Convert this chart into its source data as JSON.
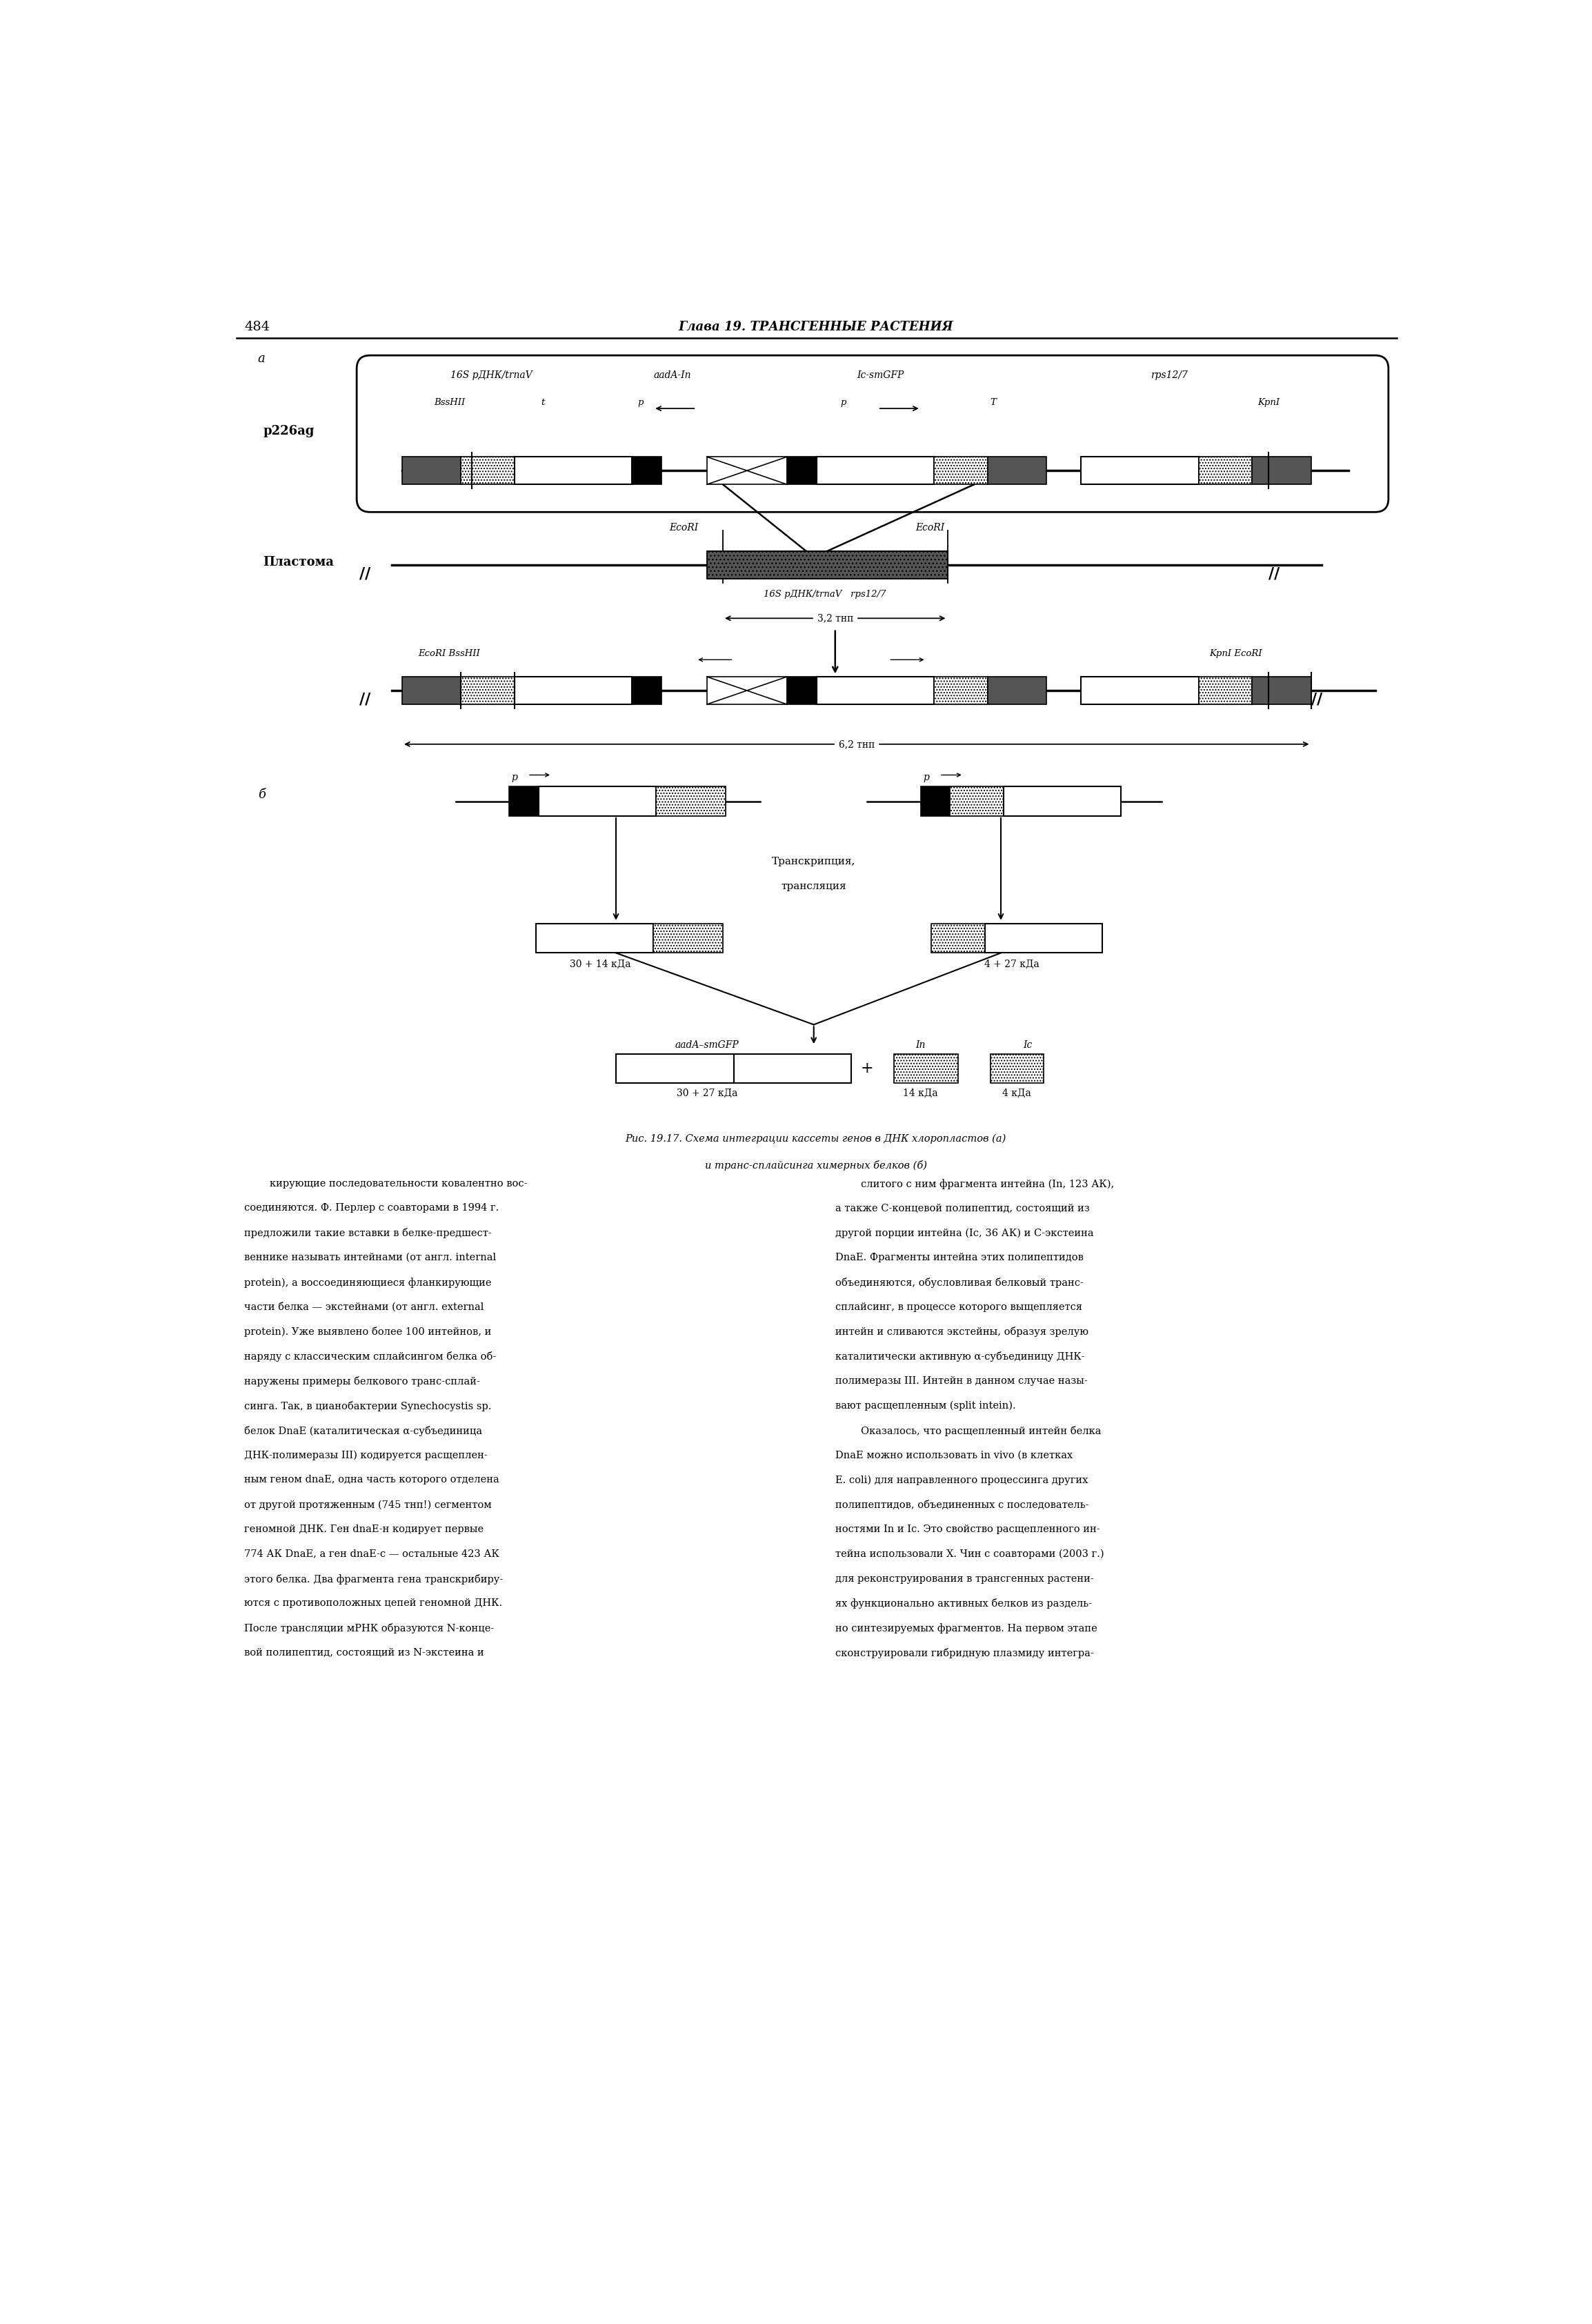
{
  "page_number": "484",
  "header": "Глава 19. ТРАНСГЕННЫЕ РАСТЕНИЯ",
  "label_a": "а",
  "label_b": "б",
  "p226ag": "p226ag",
  "plastoma": "Пластома",
  "label_16S_1": "16S рДНК/trnaV",
  "label_BssHII": "BssHII",
  "label_t": "t",
  "label_aadA_In": "aadA-In",
  "label_p1": "p",
  "label_IcsmGFP": "Ic-smGFP",
  "label_p2": "p",
  "label_T": "T",
  "label_rps127": "rps12/7",
  "label_KpnI": "KpnI",
  "label_EcoRI_L": "EcoRI",
  "label_EcoRI_R": "EcoRI",
  "label_16S_2": "16S рДНК/trnaV   rps12/7",
  "label_32": "3,2 тнп",
  "label_EcoRI_BssHII_L": "EcoRI BssHII",
  "label_KpnI_EcoRI_R": "KpnI EcoRI",
  "label_62": "6,2 тнп",
  "label_aadA_In_b": "aadA-In",
  "label_IcsmGFP_b": "Ic-smGFP",
  "label_p_b1": "p",
  "label_p_b2": "p",
  "label_transcription": "Транскрипция,",
  "label_translation": "трансляция",
  "label_30_14": "30 + 14 кДа",
  "label_4_27": "4 + 27 кДа",
  "label_aadA_smGFP": "aadA–smGFP",
  "label_In": "In",
  "label_Ic": "Ic",
  "label_30_27": "30 + 27 кДа",
  "label_14": "14 кДа",
  "label_4": "4 кДа",
  "fig_caption1": "Рис. 19.17. Схема интеграции кассеты генов в ДНК хлоропластов (а)",
  "fig_caption2": "и транс-сплайсинга химерных белков (б)",
  "col1_line1": "        кирующие последовательности ковалентно вос-",
  "col1_lines": [
    "соединяются. Ф. Перлер с соавторами в 1994 г.",
    "предложили такие вставки в белке-предшест-",
    "веннике называть интейнами (от англ. internal",
    "protein), а воссоединяющиеся фланкирующие",
    "части белка — экстейнами (от англ. external",
    "protein). Уже выявлено более 100 интейнов, и",
    "наряду с классическим сплайсингом белка об-",
    "наружены примеры белкового транс-сплай-",
    "синга. Так, в цианобактерии Synechocystis sp.",
    "белок DnaE (каталитическая α-субъединица",
    "ДНК-полимеразы III) кодируется расщеплен-",
    "ным геном dnaE, одна часть которого отделена",
    "от другой протяженным (745 тнп!) сегментом",
    "геномной ДНК. Ген dnaE-н кодирует первые",
    "774 АК DnaE, а ген dnaE-с — остальные 423 АК",
    "этого белка. Два фрагмента гена транскрибиру-",
    "ются с противоположных цепей геномной ДНК.",
    "После трансляции мРНК образуются N-конце-",
    "вой полипептид, состоящий из N-экстеина и"
  ],
  "col2_lines": [
    "        слитого с ним фрагмента интейна (In, 123 АК),",
    "а также C-концевой полипептид, состоящий из",
    "другой порции интейна (Ic, 36 АК) и C-экстеина",
    "DnaE. Фрагменты интейна этих полипептидов",
    "объединяются, обусловливая белковый транс-",
    "сплайсинг, в процессе которого выщепляется",
    "интейн и сливаются экстейны, образуя зрелую",
    "каталитически активную α-субъединицу ДНК-",
    "полимеразы III. Интейн в данном случае назы-",
    "вают расщепленным (split intein).",
    "        Оказалось, что расщепленный интейн белка",
    "DnaE можно использовать in vivo (в клетках",
    "E. coli) для направленного процессинга других",
    "полипептидов, объединенных с последователь-",
    "ностями In и Ic. Это свойство расщепленного ин-",
    "тейна использовали Х. Чин с соавторами (2003 г.)",
    "для реконструирования в трансгенных растени-",
    "ях функционально активных белков из раздель-",
    "но синтезируемых фрагментов. На первом этапе",
    "сконструировали гибридную плазмиду интегра-"
  ]
}
